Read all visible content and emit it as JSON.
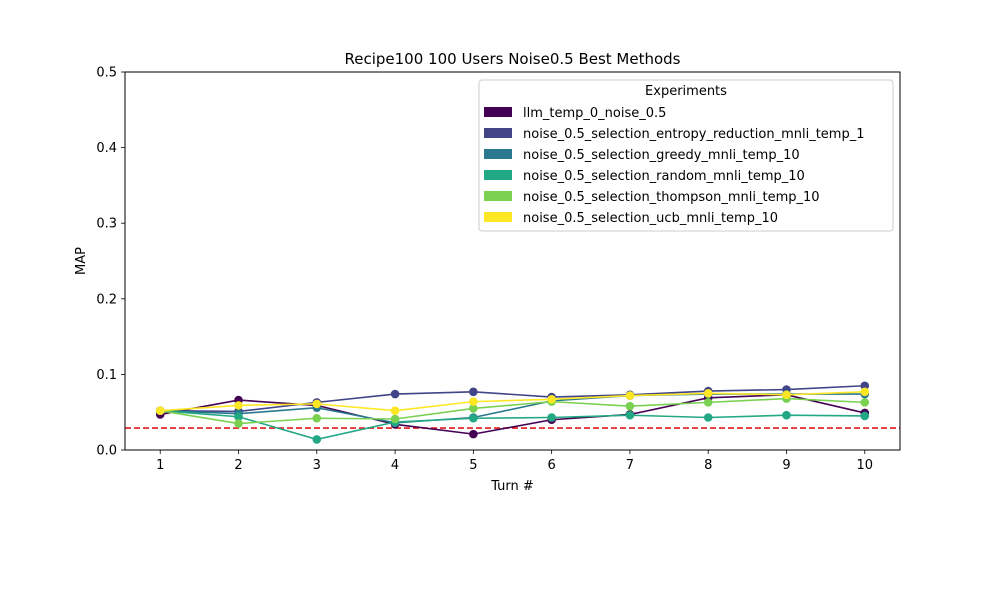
{
  "chart_data": {
    "type": "line",
    "title": "Recipe100 100 Users Noise0.5 Best Methods",
    "xlabel": "Turn #",
    "ylabel": "MAP",
    "x": [
      1,
      2,
      3,
      4,
      5,
      6,
      7,
      8,
      9,
      10
    ],
    "xlim": [
      0.55,
      10.45
    ],
    "ylim": [
      0,
      0.5
    ],
    "yticks": [
      "0.0",
      "0.1",
      "0.2",
      "0.3",
      "0.4",
      "0.5"
    ],
    "xticks": [
      "1",
      "2",
      "3",
      "4",
      "5",
      "6",
      "7",
      "8",
      "9",
      "10"
    ],
    "reference_line": {
      "y": 0.029,
      "color": "#e31a1c",
      "style": "dashed"
    },
    "legend": {
      "title": "Experiments",
      "placement": "upper right"
    },
    "grid": false,
    "series": [
      {
        "name": "llm_temp_0_noise_0.5",
        "color": "#440154",
        "values": [
          0.047,
          0.066,
          0.059,
          0.034,
          0.021,
          0.04,
          0.047,
          0.069,
          0.073,
          0.049
        ]
      },
      {
        "name": "noise_0.5_selection_entropy_reduction_mnli_temp_1",
        "color": "#414487",
        "values": [
          0.052,
          0.051,
          0.063,
          0.074,
          0.077,
          0.07,
          0.073,
          0.078,
          0.08,
          0.085
        ]
      },
      {
        "name": "noise_0.5_selection_greedy_mnli_temp_10",
        "color": "#2a788e",
        "values": [
          0.052,
          0.048,
          0.056,
          0.036,
          0.043,
          0.065,
          0.072,
          0.074,
          0.074,
          0.074
        ]
      },
      {
        "name": "noise_0.5_selection_random_mnli_temp_10",
        "color": "#22a884",
        "values": [
          0.052,
          0.044,
          0.014,
          0.037,
          0.042,
          0.043,
          0.046,
          0.043,
          0.046,
          0.045
        ]
      },
      {
        "name": "noise_0.5_selection_thompson_mnli_temp_10",
        "color": "#7ad151",
        "values": [
          0.052,
          0.035,
          0.042,
          0.041,
          0.055,
          0.064,
          0.058,
          0.063,
          0.068,
          0.063
        ]
      },
      {
        "name": "noise_0.5_selection_ucb_mnli_temp_10",
        "color": "#fde725",
        "values": [
          0.052,
          0.059,
          0.061,
          0.052,
          0.064,
          0.067,
          0.072,
          0.075,
          0.073,
          0.077
        ]
      }
    ]
  }
}
